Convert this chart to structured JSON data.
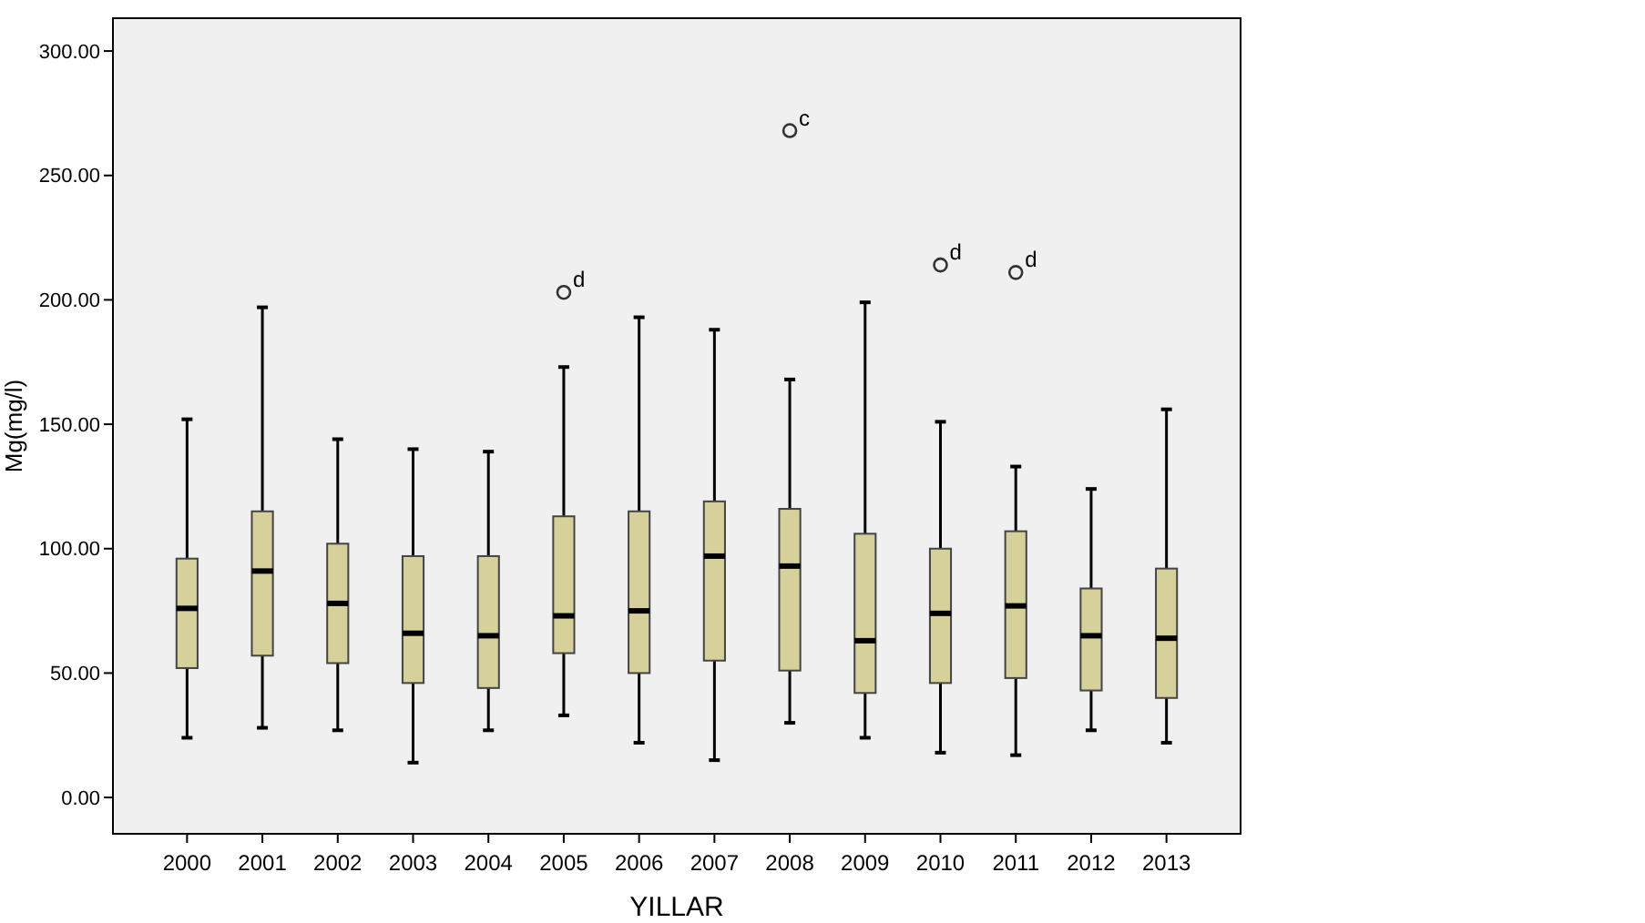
{
  "chart_data": {
    "type": "box",
    "xlabel": "YILLAR",
    "ylabel": "Mg(mg/l)",
    "categories": [
      "2000",
      "2001",
      "2002",
      "2003",
      "2004",
      "2005",
      "2006",
      "2007",
      "2008",
      "2009",
      "2010",
      "2011",
      "2012",
      "2013"
    ],
    "color": "#d6d19a",
    "boxes": [
      {
        "low": 24,
        "q1": 52,
        "median": 76,
        "q3": 96,
        "high": 152
      },
      {
        "low": 28,
        "q1": 57,
        "median": 91,
        "q3": 115,
        "high": 197
      },
      {
        "low": 27,
        "q1": 54,
        "median": 78,
        "q3": 102,
        "high": 144
      },
      {
        "low": 14,
        "q1": 46,
        "median": 66,
        "q3": 97,
        "high": 140
      },
      {
        "low": 27,
        "q1": 44,
        "median": 65,
        "q3": 97,
        "high": 139
      },
      {
        "low": 33,
        "q1": 58,
        "median": 73,
        "q3": 113,
        "high": 173,
        "outliers": [
          203
        ]
      },
      {
        "low": 22,
        "q1": 50,
        "median": 75,
        "q3": 115,
        "high": 193
      },
      {
        "low": 15,
        "q1": 55,
        "median": 97,
        "q3": 119,
        "high": 188
      },
      {
        "low": 30,
        "q1": 51,
        "median": 93,
        "q3": 116,
        "high": 168,
        "outliers": [
          268
        ]
      },
      {
        "low": 24,
        "q1": 42,
        "median": 63,
        "q3": 106,
        "high": 199
      },
      {
        "low": 18,
        "q1": 46,
        "median": 74,
        "q3": 100,
        "high": 151,
        "outliers": [
          214
        ]
      },
      {
        "low": 17,
        "q1": 48,
        "median": 77,
        "q3": 107,
        "high": 133,
        "outliers": [
          211
        ]
      },
      {
        "low": 27,
        "q1": 43,
        "median": 65,
        "q3": 84,
        "high": 124
      },
      {
        "low": 22,
        "q1": 40,
        "median": 64,
        "q3": 92,
        "high": 156
      }
    ],
    "annotations": [
      "d",
      "c",
      "d",
      "d"
    ],
    "ylim": [
      -14.6,
      313.2
    ],
    "yticks": [
      {
        "value": 0,
        "label": "0.00"
      },
      {
        "value": 50,
        "label": "50.00"
      },
      {
        "value": 100,
        "label": "100.00"
      },
      {
        "value": 150,
        "label": "150.00"
      },
      {
        "value": 200,
        "label": "200.00"
      },
      {
        "value": 250,
        "label": "250.00"
      },
      {
        "value": 300,
        "label": "300.00"
      }
    ],
    "grid": false
  }
}
